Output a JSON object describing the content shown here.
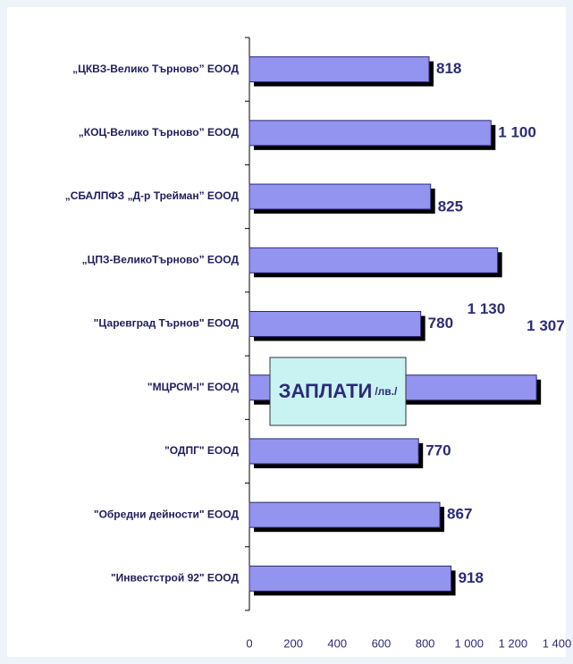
{
  "chart_data": {
    "type": "bar",
    "orientation": "horizontal",
    "annotation": "ЗАПЛАТИ",
    "annotation_unit": "/лв./",
    "categories": [
      "„ЦКВЗ-Велико Търново” ЕООД",
      "„КОЦ-Велико Търново” ЕООД",
      "„СБАЛПФЗ „Д-р Трейман” ЕООД",
      "„ЦПЗ-ВеликоТърново” ЕООД",
      "\"Царевград Търнов\" ЕООД",
      "\"МЦРСМ-I\" ЕООД",
      "\"ОДПГ\" ЕООД",
      "\"Обредни дейности\" ЕООД",
      "\"Инвестстрой 92\" ЕООД"
    ],
    "values": [
      818,
      1100,
      825,
      1130,
      780,
      1307,
      770,
      867,
      918
    ],
    "value_labels": [
      "818",
      "1 100",
      "825",
      "1 130",
      "780",
      "1 307",
      "770",
      "867",
      "918"
    ],
    "color": "#9393f0",
    "xlim": [
      0,
      1400
    ],
    "xticks": [
      0,
      200,
      400,
      600,
      800,
      {
        "value": 1000,
        "label": "1 000"
      },
      {
        "value": 1200,
        "label": "1 200"
      },
      {
        "value": 1400,
        "label": "1 400"
      }
    ]
  }
}
